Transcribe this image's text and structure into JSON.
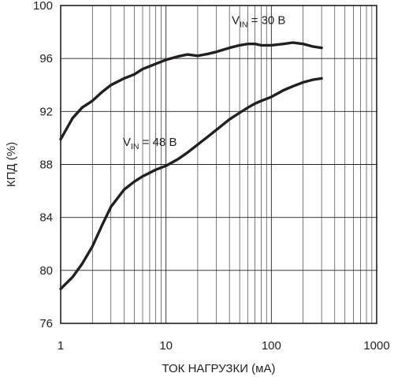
{
  "chart_data": {
    "type": "line",
    "xlabel": "ТОК НАГРУЗКИ (мА)",
    "ylabel": "КПД (%)",
    "xscale": "log",
    "xlim": [
      1,
      1000
    ],
    "ylim": [
      76,
      100
    ],
    "xticks": [
      "1",
      "10",
      "100",
      "1000"
    ],
    "yticks": [
      "76",
      "80",
      "84",
      "88",
      "92",
      "96",
      "100"
    ],
    "grid": true,
    "colors": {
      "line": "#231f20",
      "grid": "#231f20",
      "background": "#ffffff"
    },
    "series": [
      {
        "name": "VIN = 30 В",
        "label_main": "V",
        "label_sub": "IN",
        "label_rest": " = 30 В",
        "x": [
          1,
          1.3,
          1.6,
          2,
          2.5,
          3,
          4,
          5,
          6,
          8,
          10,
          13,
          16,
          20,
          25,
          30,
          40,
          50,
          60,
          70,
          80,
          100,
          130,
          160,
          200,
          250,
          300
        ],
        "y": [
          89.9,
          91.5,
          92.3,
          92.8,
          93.5,
          94.0,
          94.5,
          94.8,
          95.2,
          95.6,
          95.9,
          96.15,
          96.3,
          96.2,
          96.35,
          96.5,
          96.8,
          97.0,
          97.1,
          97.1,
          97.0,
          97.0,
          97.1,
          97.2,
          97.1,
          96.9,
          96.8
        ]
      },
      {
        "name": "VIN = 48 В",
        "label_main": "V",
        "label_sub": "IN",
        "label_rest": " = 48 В",
        "x": [
          1,
          1.3,
          1.6,
          2,
          2.5,
          3,
          4,
          5,
          6,
          8,
          10,
          13,
          16,
          20,
          25,
          30,
          40,
          50,
          60,
          70,
          80,
          100,
          130,
          160,
          200,
          250,
          300
        ],
        "y": [
          78.6,
          79.5,
          80.5,
          81.8,
          83.5,
          84.8,
          86.1,
          86.7,
          87.1,
          87.6,
          87.9,
          88.4,
          88.9,
          89.5,
          90.1,
          90.6,
          91.4,
          91.9,
          92.3,
          92.6,
          92.8,
          93.1,
          93.6,
          93.9,
          94.2,
          94.4,
          94.5
        ]
      }
    ]
  }
}
